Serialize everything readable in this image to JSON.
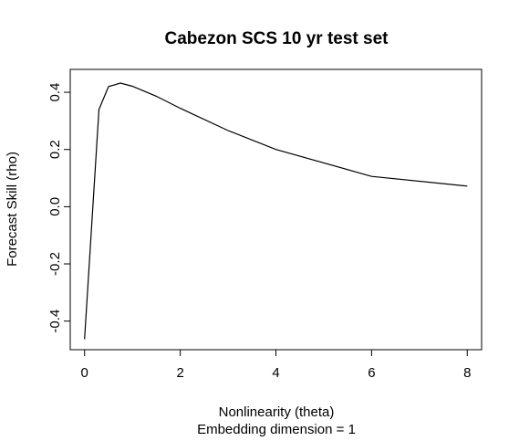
{
  "chart_data": {
    "type": "line",
    "title": "Cabezon SCS 10 yr test set",
    "xlabel": "Nonlinearity (theta)",
    "xlabel2": "Embedding dimension = 1",
    "ylabel": "Forecast Skill (rho)",
    "xlim": [
      -0.3,
      8.3
    ],
    "ylim": [
      -0.5,
      0.48
    ],
    "xticks": [
      0,
      2,
      4,
      6,
      8
    ],
    "yticks": [
      -0.4,
      -0.2,
      0.0,
      0.2,
      0.4
    ],
    "xtick_labels": [
      "0",
      "2",
      "4",
      "6",
      "8"
    ],
    "ytick_labels": [
      "-0.4",
      "-0.2",
      "0.0",
      "0.2",
      "0.4"
    ],
    "grid": false,
    "line_color": "#000000",
    "series": [
      {
        "x": [
          0,
          0.3,
          0.5,
          0.75,
          1,
          1.5,
          2,
          3,
          4,
          6,
          8
        ],
        "values": [
          -0.463,
          0.34,
          0.42,
          0.432,
          0.421,
          0.386,
          0.344,
          0.266,
          0.2,
          0.106,
          0.072
        ]
      }
    ]
  }
}
